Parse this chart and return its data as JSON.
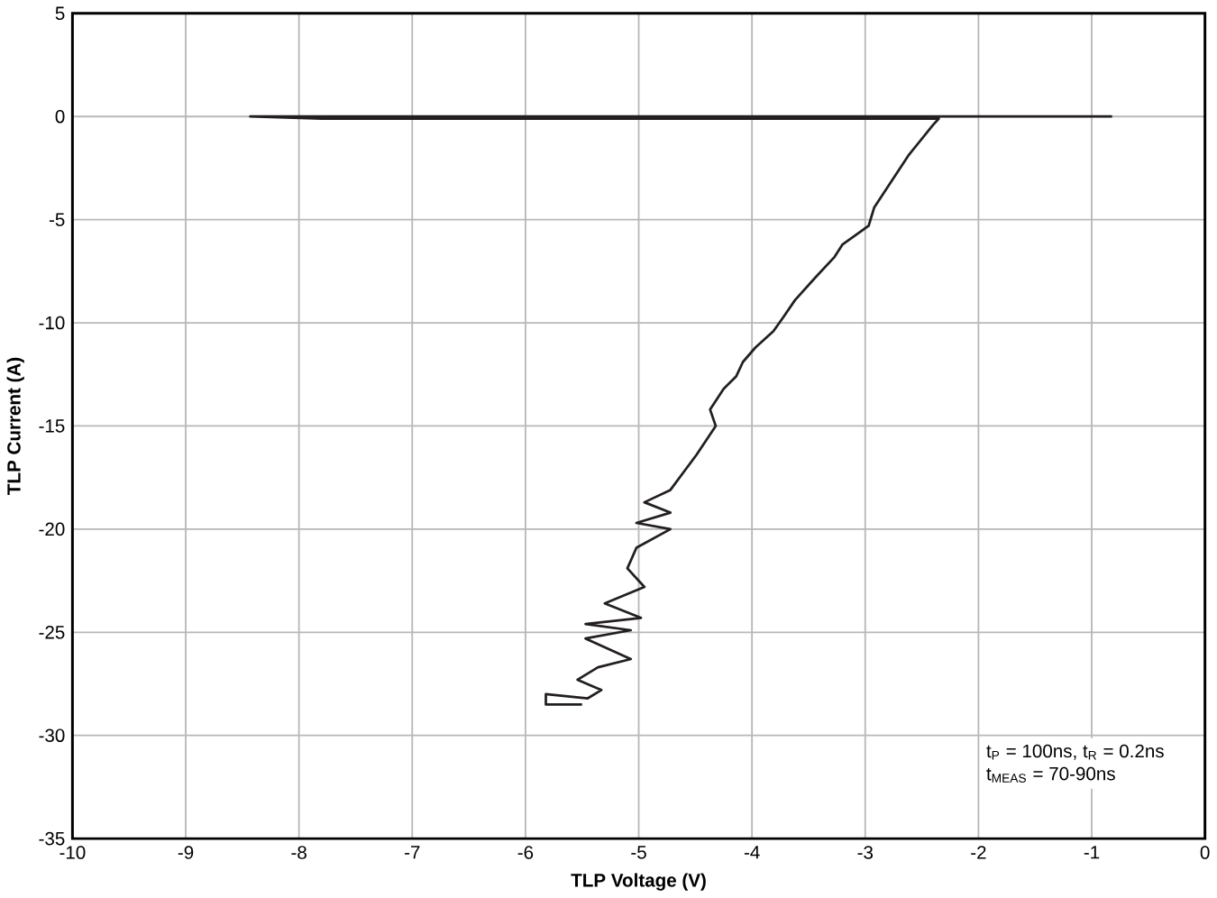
{
  "chart_data": {
    "type": "line",
    "xlabel": "TLP Voltage (V)",
    "ylabel": "TLP Current (A)",
    "xlim": [
      -10,
      0
    ],
    "ylim": [
      -35,
      5
    ],
    "xticks": [
      -10,
      -9,
      -8,
      -7,
      -6,
      -5,
      -4,
      -3,
      -2,
      -1,
      0
    ],
    "yticks": [
      -35,
      -30,
      -25,
      -20,
      -15,
      -10,
      -5,
      0,
      5
    ],
    "grid": true,
    "annotations": [
      "t$_{P}$ = 100ns, t$_{R}$ = 0.2ns",
      "t$_{MEAS}$ = 70-90ns"
    ],
    "series": [
      {
        "color": "#231f20",
        "x": [
          -0.82,
          -8.43,
          -7.8,
          -2.35,
          -2.4,
          -2.62,
          -2.92,
          -2.97,
          -3.2,
          -3.27,
          -3.44,
          -3.62,
          -3.72,
          -3.81,
          -3.97,
          -4.08,
          -4.14,
          -4.25,
          -4.37,
          -4.32,
          -4.49,
          -4.72,
          -4.95,
          -4.72,
          -5.02,
          -4.72,
          -5.02,
          -5.1,
          -4.95,
          -5.3,
          -4.98,
          -5.47,
          -5.07,
          -5.47,
          -5.07,
          -5.36,
          -5.54,
          -5.33,
          -5.45,
          -5.82,
          -5.82,
          -5.5
        ],
        "values": [
          0,
          0,
          -0.1,
          -0.1,
          -0.4,
          -1.9,
          -4.4,
          -5.3,
          -6.2,
          -6.8,
          -7.8,
          -8.9,
          -9.7,
          -10.4,
          -11.2,
          -11.9,
          -12.6,
          -13.2,
          -14.2,
          -15.0,
          -16.4,
          -18.1,
          -18.7,
          -19.2,
          -19.7,
          -20.0,
          -20.9,
          -21.9,
          -22.8,
          -23.6,
          -24.3,
          -24.6,
          -24.9,
          -25.3,
          -26.3,
          -26.7,
          -27.3,
          -27.8,
          -28.2,
          -28.0,
          -28.5,
          -28.5
        ]
      }
    ]
  }
}
